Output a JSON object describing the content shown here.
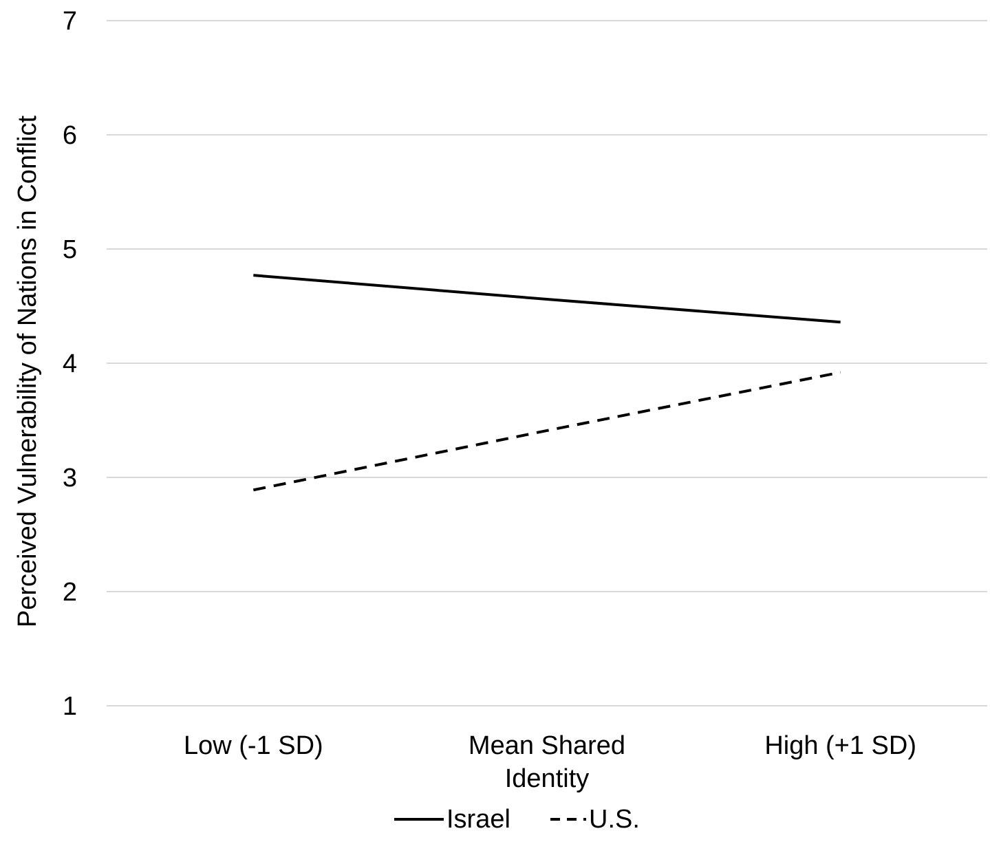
{
  "chart_data": {
    "type": "line",
    "categories": [
      "Low (-1 SD)",
      "Mean Shared Identity",
      "High (+1 SD)"
    ],
    "category_lines": [
      [
        "Low (-1 SD)"
      ],
      [
        "Mean Shared",
        "Identity"
      ],
      [
        "High (+1 SD)"
      ]
    ],
    "series": [
      {
        "name": "Israel",
        "values": [
          4.77,
          4.56,
          4.36
        ],
        "style": "solid",
        "color": "#000000"
      },
      {
        "name": "U.S.",
        "values": [
          2.89,
          3.41,
          3.92
        ],
        "style": "dashed",
        "color": "#000000"
      }
    ],
    "ylabel": "Perceived Vulnerability of Nations in Conflict",
    "xlabel": "",
    "ylim": [
      1,
      7
    ],
    "yticks": [
      1,
      2,
      3,
      4,
      5,
      6,
      7
    ],
    "grid": true,
    "gridline_color": "#d9d9d9",
    "legend_position": "bottom-center"
  }
}
